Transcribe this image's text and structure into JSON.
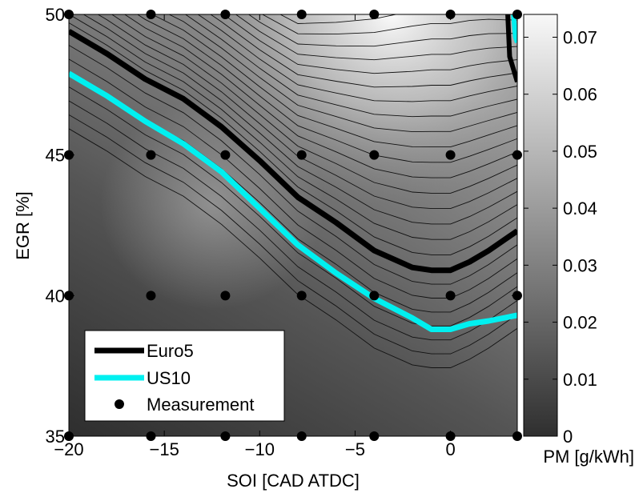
{
  "chart_data": {
    "type": "heatmap",
    "subtype": "filled contour map with measurement points",
    "xlabel": "SOI [CAD ATDC]",
    "ylabel": "EGR [%]",
    "xlim": [
      -20,
      3.5
    ],
    "ylim": [
      35,
      50
    ],
    "x_ticks": [
      "−20",
      "−15",
      "−10",
      "−5",
      "0"
    ],
    "x_tick_values": [
      -20,
      -15,
      -10,
      -5,
      0
    ],
    "y_ticks": [
      "35",
      "40",
      "45",
      "50"
    ],
    "y_tick_values": [
      35,
      40,
      45,
      50
    ],
    "colorbar": {
      "label": "PM [g/kWh]",
      "range": [
        0,
        0.074
      ],
      "ticks": [
        "0",
        "0.01",
        "0.02",
        "0.03",
        "0.04",
        "0.05",
        "0.06",
        "0.07"
      ],
      "tick_values": [
        0,
        0.01,
        0.02,
        0.03,
        0.04,
        0.05,
        0.06,
        0.07
      ],
      "colormap": "gray",
      "low_color": "#2f2f2f",
      "high_color": "#f8f8f8"
    },
    "grid": false,
    "legend_position": "bottom-left",
    "series": [
      {
        "name": "Euro5",
        "kind": "contour line",
        "color": "#000000",
        "x": [
          -20,
          -18,
          -16,
          -14,
          -12,
          -10,
          -8,
          -6,
          -4,
          -2,
          -1,
          0,
          1,
          2,
          3.5
        ],
        "y": [
          49.4,
          48.6,
          47.7,
          47.0,
          46.0,
          44.8,
          43.5,
          42.6,
          41.6,
          41.0,
          40.9,
          40.9,
          41.2,
          41.6,
          42.3
        ]
      },
      {
        "name": "US10",
        "kind": "contour line",
        "color": "#00f0f0",
        "x": [
          -20,
          -18,
          -16,
          -14,
          -12,
          -10,
          -8,
          -6,
          -4,
          -2,
          -1,
          0,
          1,
          2,
          3.5
        ],
        "y": [
          47.9,
          47.1,
          46.2,
          45.4,
          44.4,
          43.1,
          41.8,
          40.8,
          39.9,
          39.2,
          38.8,
          38.8,
          39.0,
          39.1,
          39.3
        ]
      },
      {
        "name": "Measurement",
        "kind": "points",
        "color": "#000000",
        "x": [
          -20,
          -15.7,
          -11.8,
          -7.8,
          -4,
          0,
          3.5,
          -20,
          -15.7,
          -11.8,
          -7.8,
          -4,
          0,
          3.5,
          -20,
          -15.7,
          -11.8,
          -7.8,
          -4,
          0,
          3.5,
          -20,
          -15.7,
          -11.8,
          -7.8,
          -4,
          0,
          3.5
        ],
        "y": [
          50,
          50,
          50,
          50,
          50,
          50,
          50,
          45,
          45,
          45,
          45,
          45,
          45,
          45,
          40,
          40,
          40,
          40,
          40,
          40,
          40,
          35,
          35,
          35,
          35,
          35,
          35,
          35
        ]
      }
    ],
    "legend": [
      "Euro5",
      "US10",
      "Measurement"
    ]
  }
}
